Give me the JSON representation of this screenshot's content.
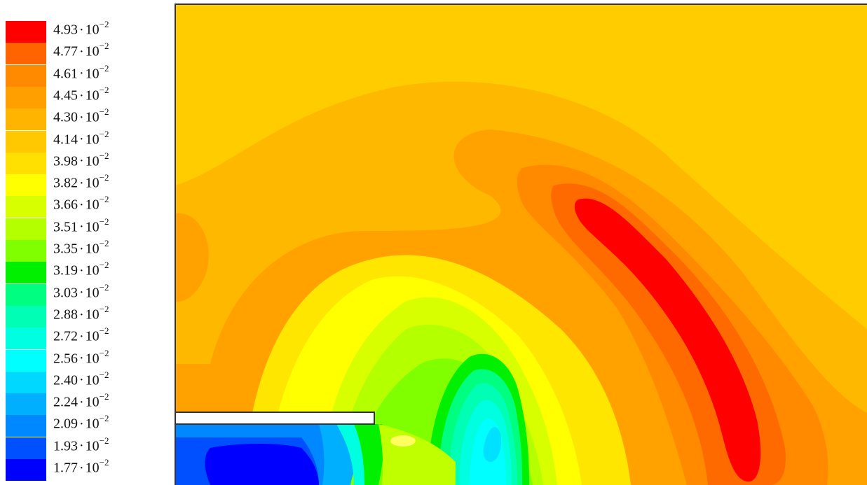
{
  "chart_data": {
    "type": "heatmap",
    "title": "",
    "xlabel": "",
    "ylabel": "",
    "legend": {
      "placement": "left",
      "entries": [
        {
          "mantissa": "4.93",
          "base": "10",
          "exponent": "−2",
          "value": 0.0493,
          "color": "#ff0000"
        },
        {
          "mantissa": "4.77",
          "base": "10",
          "exponent": "−2",
          "value": 0.0477,
          "color": "#ff6400"
        },
        {
          "mantissa": "4.61",
          "base": "10",
          "exponent": "−2",
          "value": 0.0461,
          "color": "#ff8a00"
        },
        {
          "mantissa": "4.45",
          "base": "10",
          "exponent": "−2",
          "value": 0.0445,
          "color": "#ffa000"
        },
        {
          "mantissa": "4.30",
          "base": "10",
          "exponent": "−2",
          "value": 0.043,
          "color": "#ffb400"
        },
        {
          "mantissa": "4.14",
          "base": "10",
          "exponent": "−2",
          "value": 0.0414,
          "color": "#ffc800"
        },
        {
          "mantissa": "3.98",
          "base": "10",
          "exponent": "−2",
          "value": 0.0398,
          "color": "#ffe000"
        },
        {
          "mantissa": "3.82",
          "base": "10",
          "exponent": "−2",
          "value": 0.0382,
          "color": "#ffff00"
        },
        {
          "mantissa": "3.66",
          "base": "10",
          "exponent": "−2",
          "value": 0.0366,
          "color": "#d8ff00"
        },
        {
          "mantissa": "3.51",
          "base": "10",
          "exponent": "−2",
          "value": 0.0351,
          "color": "#b4ff00"
        },
        {
          "mantissa": "3.35",
          "base": "10",
          "exponent": "−2",
          "value": 0.0335,
          "color": "#80ff00"
        },
        {
          "mantissa": "3.19",
          "base": "10",
          "exponent": "−2",
          "value": 0.0319,
          "color": "#00f000"
        },
        {
          "mantissa": "3.03",
          "base": "10",
          "exponent": "−2",
          "value": 0.0303,
          "color": "#00ff80"
        },
        {
          "mantissa": "2.88",
          "base": "10",
          "exponent": "−2",
          "value": 0.0288,
          "color": "#00ffb4"
        },
        {
          "mantissa": "2.72",
          "base": "10",
          "exponent": "−2",
          "value": 0.0272,
          "color": "#00ffe0"
        },
        {
          "mantissa": "2.56",
          "base": "10",
          "exponent": "−2",
          "value": 0.0256,
          "color": "#00ffff"
        },
        {
          "mantissa": "2.40",
          "base": "10",
          "exponent": "−2",
          "value": 0.024,
          "color": "#00d8ff"
        },
        {
          "mantissa": "2.24",
          "base": "10",
          "exponent": "−2",
          "value": 0.0224,
          "color": "#00b0ff"
        },
        {
          "mantissa": "2.09",
          "base": "10",
          "exponent": "−2",
          "value": 0.0209,
          "color": "#0088ff"
        },
        {
          "mantissa": "1.93",
          "base": "10",
          "exponent": "−2",
          "value": 0.0193,
          "color": "#0050ff"
        },
        {
          "mantissa": "1.77",
          "base": "10",
          "exponent": "−2",
          "value": 0.0177,
          "color": "#0000ff"
        }
      ]
    },
    "grid": false
  },
  "colors": {
    "background": "#ffcc00",
    "outline": "#333333",
    "slot": "#ffffff"
  }
}
